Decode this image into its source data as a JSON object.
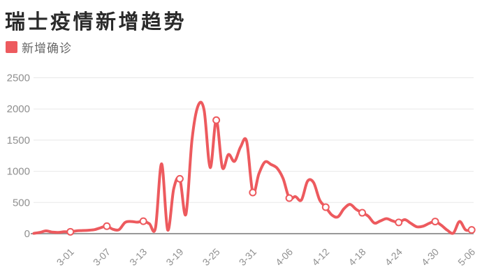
{
  "header": {
    "title": "瑞士疫情新增趋势"
  },
  "legend": {
    "label": "新增确诊",
    "color": "#ed5a5e"
  },
  "chart_data": {
    "type": "line",
    "title": "瑞士疫情新增趋势",
    "series_name": "新增确诊",
    "smooth": true,
    "grid": true,
    "legend_position": "top-left",
    "line_color": "#ed5a5e",
    "marker_fill": "#ffffff",
    "grid_color": "#e8e8e8",
    "axis_color": "#999999",
    "label_color": "#8f8f8f",
    "ylim": [
      0,
      2500
    ],
    "y_ticks": [
      0,
      500,
      1000,
      1500,
      2000,
      2500
    ],
    "x_tick_labels": [
      "3-01",
      "3-07",
      "3-13",
      "3-19",
      "3-25",
      "3-31",
      "4-06",
      "4-12",
      "4-18",
      "4-24",
      "4-30",
      "5-06"
    ],
    "marker_every": 6,
    "x": [
      "2-24",
      "2-25",
      "2-26",
      "2-27",
      "2-28",
      "2-29",
      "3-01",
      "3-02",
      "3-03",
      "3-04",
      "3-05",
      "3-06",
      "3-07",
      "3-08",
      "3-09",
      "3-10",
      "3-11",
      "3-12",
      "3-13",
      "3-14",
      "3-15",
      "3-16",
      "3-17",
      "3-18",
      "3-19",
      "3-20",
      "3-21",
      "3-22",
      "3-23",
      "3-24",
      "3-25",
      "3-26",
      "3-27",
      "3-28",
      "3-29",
      "3-30",
      "3-31",
      "4-01",
      "4-02",
      "4-03",
      "4-04",
      "4-05",
      "4-06",
      "4-07",
      "4-08",
      "4-09",
      "4-10",
      "4-11",
      "4-12",
      "4-13",
      "4-14",
      "4-15",
      "4-16",
      "4-17",
      "4-18",
      "4-19",
      "4-20",
      "4-21",
      "4-22",
      "4-23",
      "4-24",
      "4-25",
      "4-26",
      "4-27",
      "4-28",
      "4-29",
      "4-30",
      "5-01",
      "5-02",
      "5-03",
      "5-04",
      "5-05",
      "5-06"
    ],
    "values": [
      5,
      20,
      45,
      25,
      20,
      30,
      30,
      45,
      50,
      55,
      65,
      95,
      120,
      70,
      65,
      180,
      195,
      185,
      200,
      160,
      95,
      1120,
      60,
      720,
      880,
      310,
      1500,
      2050,
      1980,
      1060,
      1820,
      1060,
      1270,
      1160,
      1390,
      1480,
      660,
      960,
      1150,
      1110,
      1050,
      880,
      570,
      595,
      540,
      840,
      820,
      540,
      425,
      300,
      270,
      400,
      470,
      390,
      335,
      280,
      170,
      205,
      240,
      205,
      180,
      225,
      165,
      110,
      120,
      165,
      195,
      135,
      55,
      10,
      195,
      60,
      60
    ]
  }
}
